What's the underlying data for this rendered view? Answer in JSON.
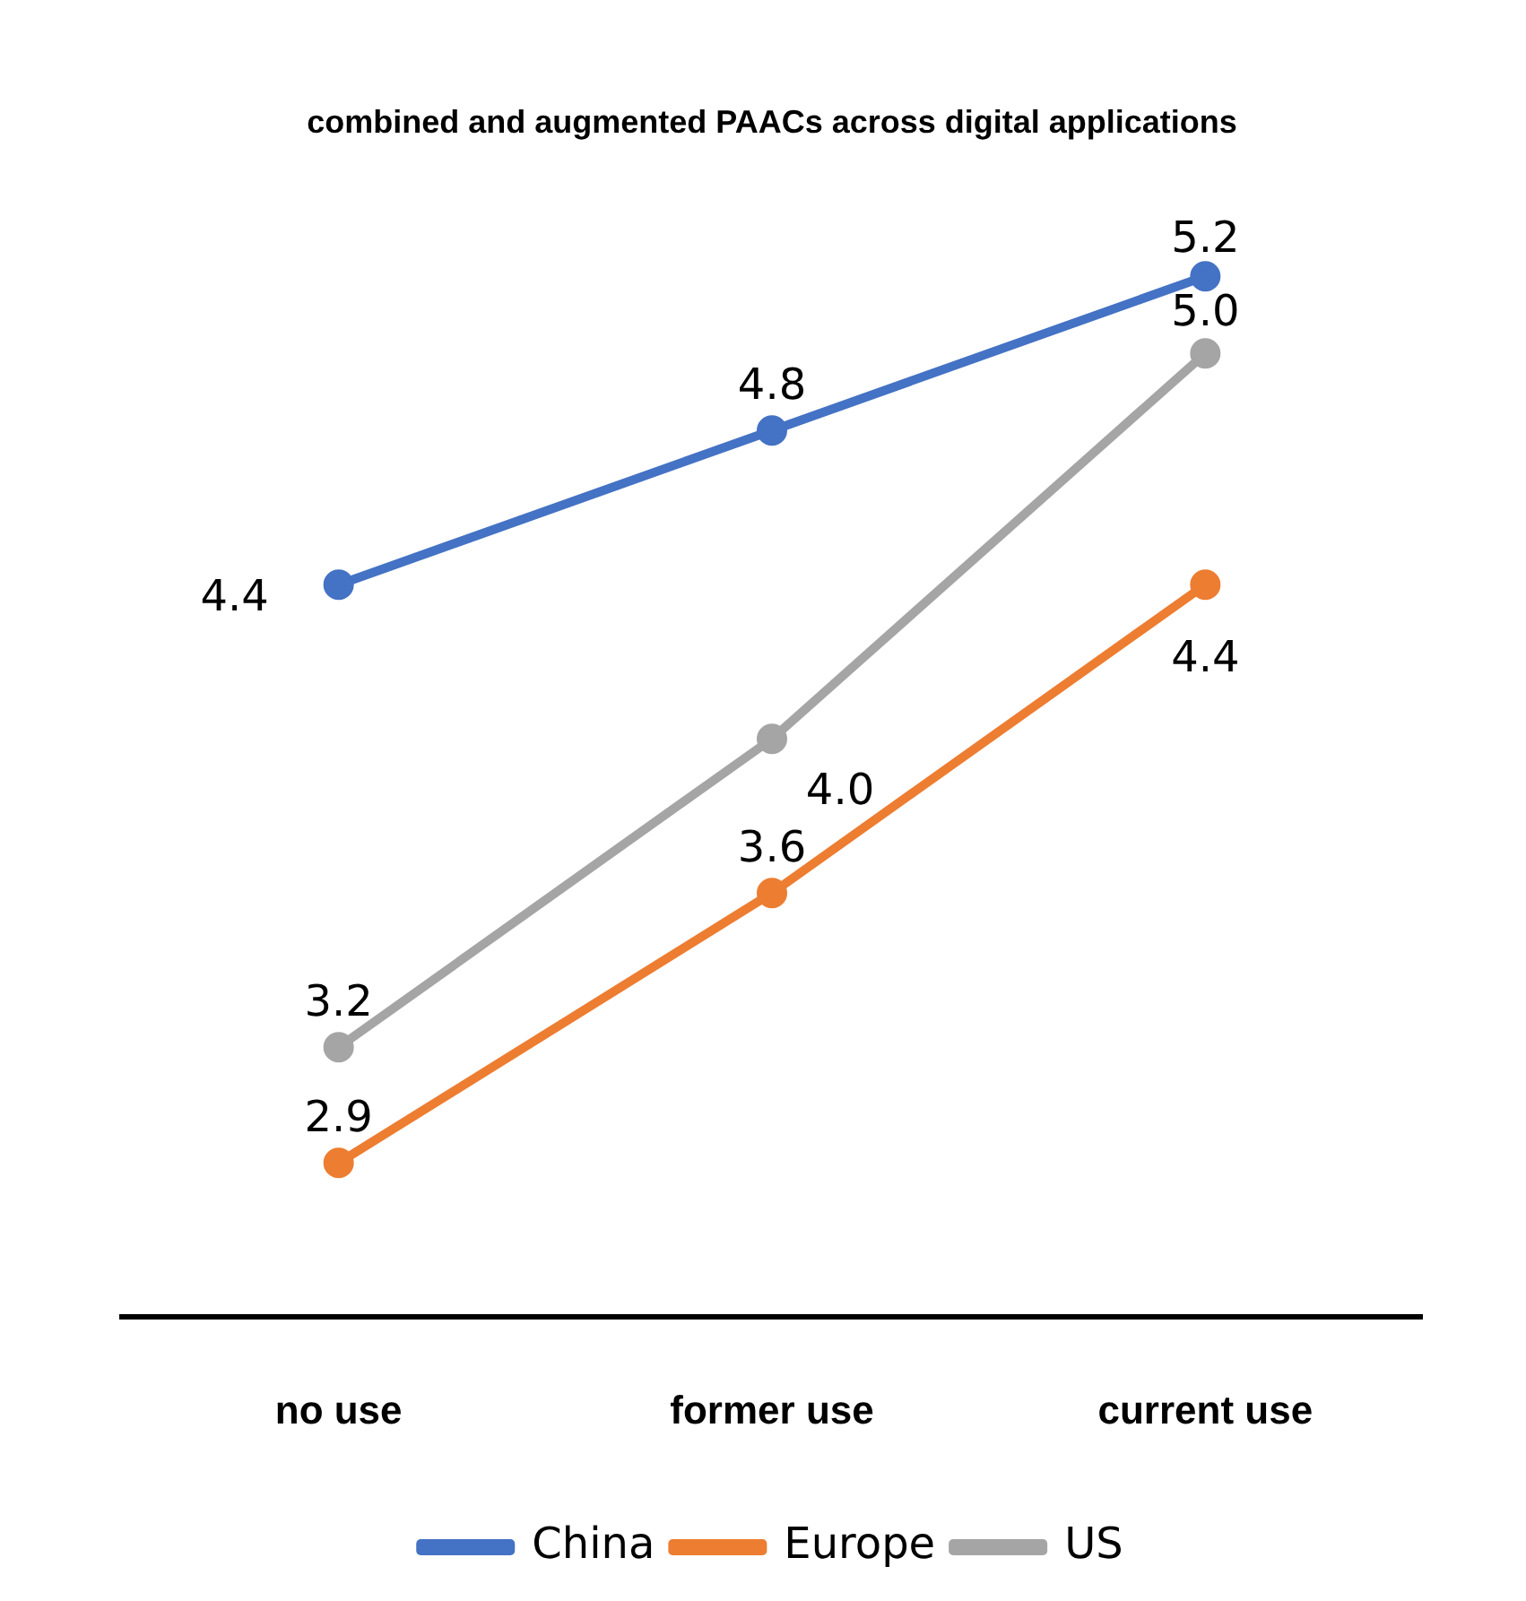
{
  "chart_data": {
    "type": "line",
    "title": "combined and augmented PAACs across digital applications",
    "categories": [
      "no use",
      "former use",
      "current use"
    ],
    "series": [
      {
        "name": "China",
        "color": "#4472c4",
        "values": [
          4.4,
          4.8,
          5.2
        ],
        "value_labels": [
          "4.4",
          "4.8",
          "5.2"
        ]
      },
      {
        "name": "Europe",
        "color": "#ed7d31",
        "values": [
          2.9,
          3.6,
          4.4
        ],
        "value_labels": [
          "2.9",
          "3.6",
          "4.4"
        ]
      },
      {
        "name": "US",
        "color": "#a5a5a5",
        "values": [
          3.2,
          4.0,
          5.0
        ],
        "value_labels": [
          "3.2",
          "4.0",
          "5.0"
        ]
      }
    ],
    "tick_labels": "x",
    "grid": false,
    "legend": "bottom",
    "marker": "circle",
    "line_style": "solid"
  }
}
